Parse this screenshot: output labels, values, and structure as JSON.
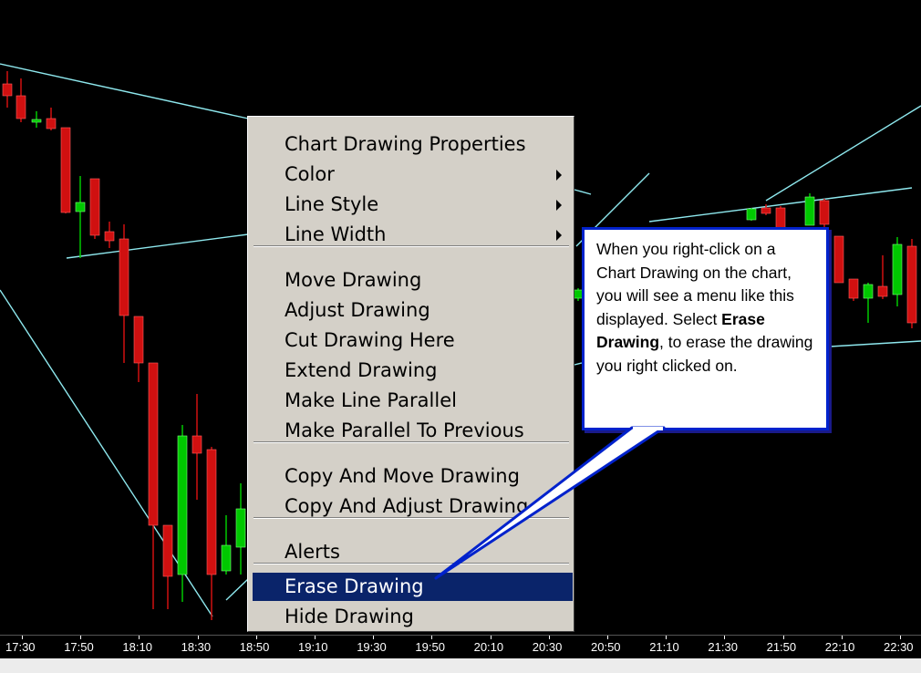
{
  "chart": {
    "background": "#000000",
    "up_color": "#00c800",
    "down_color": "#d01010",
    "trendline_color": "#8ee8ee",
    "time_axis": [
      "17:30",
      "17:50",
      "18:10",
      "18:30",
      "18:50",
      "19:10",
      "19:30",
      "19:50",
      "20:10",
      "20:30",
      "20:50",
      "21:10",
      "21:30",
      "21:50",
      "22:10",
      "22:30"
    ]
  },
  "context_menu": {
    "items": [
      {
        "label": "Chart Drawing Properties",
        "submenu": false
      },
      {
        "label": "Color",
        "submenu": true
      },
      {
        "label": "Line Style",
        "submenu": true
      },
      {
        "label": "Line Width",
        "submenu": true
      },
      {
        "label": "Move Drawing",
        "submenu": false
      },
      {
        "label": "Adjust Drawing",
        "submenu": false
      },
      {
        "label": "Cut Drawing Here",
        "submenu": false
      },
      {
        "label": "Extend Drawing",
        "submenu": false
      },
      {
        "label": "Make Line Parallel",
        "submenu": false
      },
      {
        "label": "Make Parallel To Previous",
        "submenu": false
      },
      {
        "label": "Copy And Move Drawing",
        "submenu": false
      },
      {
        "label": "Copy And Adjust Drawing",
        "submenu": false
      },
      {
        "label": "Alerts",
        "submenu": false
      },
      {
        "label": "Erase Drawing",
        "submenu": false,
        "selected": true
      },
      {
        "label": "Hide Drawing",
        "submenu": false
      }
    ],
    "highlight_color": "#0a246a",
    "background": "#d4d0c8"
  },
  "callout": {
    "text_before": "When you right-click on a Chart Drawing on the chart, you will see a menu like this displayed.  Select ",
    "bold_text": "Erase Drawing",
    "text_after": ", to erase the drawing you right clicked on.",
    "border_color": "#0022cc"
  }
}
